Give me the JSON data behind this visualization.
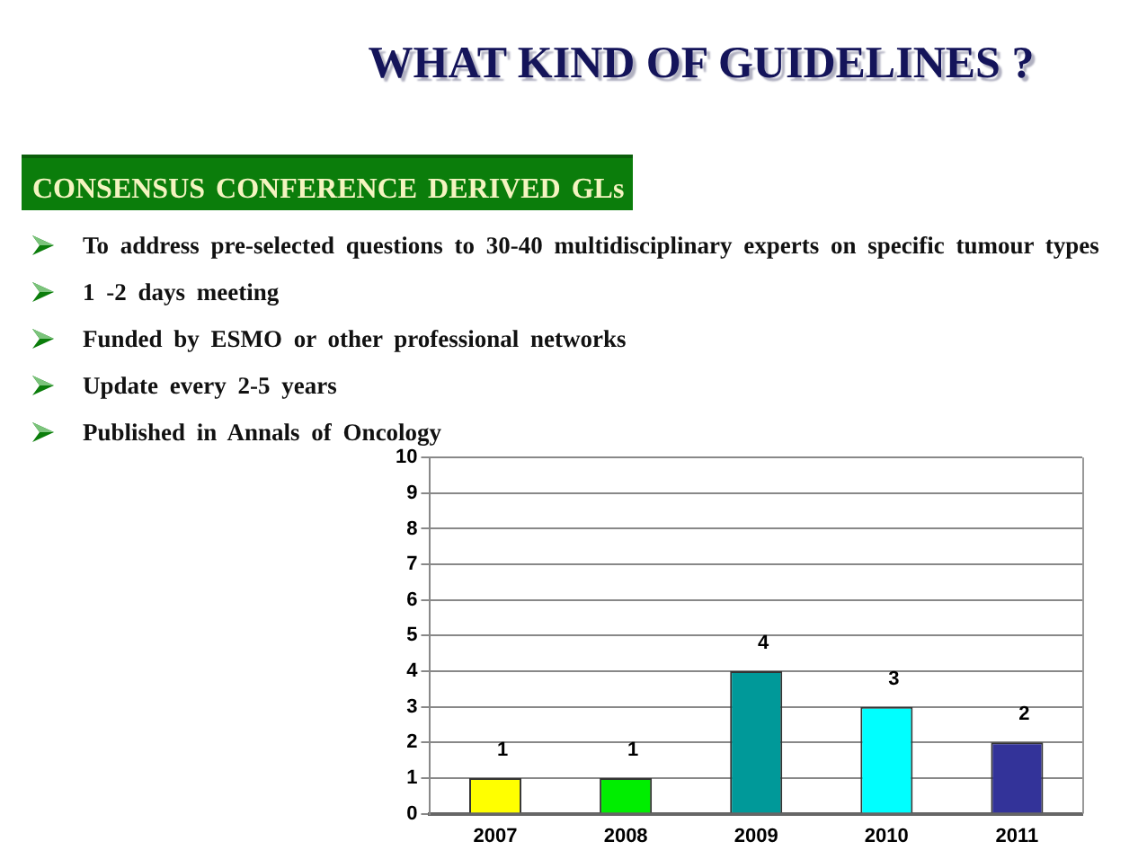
{
  "chart_data": {
    "type": "bar",
    "title": "WHAT KIND OF GUIDELINES ?",
    "subtitle": "CONSENSUS CONFERENCE DERIVED GLs",
    "annotations": [
      "To address pre-selected questions to 30-40 multidisciplinary experts on specific tumour types",
      "1 -2 days meeting",
      "Funded by ESMO or other professional networks",
      "Update every 2-5 years",
      "Published in Annals of Oncology"
    ],
    "categories": [
      "2007",
      "2008",
      "2009",
      "2010",
      "2011"
    ],
    "values": [
      1,
      1,
      4,
      3,
      2
    ],
    "colors": [
      "#ffff00",
      "#00ee00",
      "#009999",
      "#00ffff",
      "#333399"
    ],
    "ylim": [
      0,
      10
    ],
    "yticks": [
      0,
      1,
      2,
      3,
      4,
      5,
      6,
      7,
      8,
      9,
      10
    ],
    "grid": "y",
    "data_labels": true
  }
}
